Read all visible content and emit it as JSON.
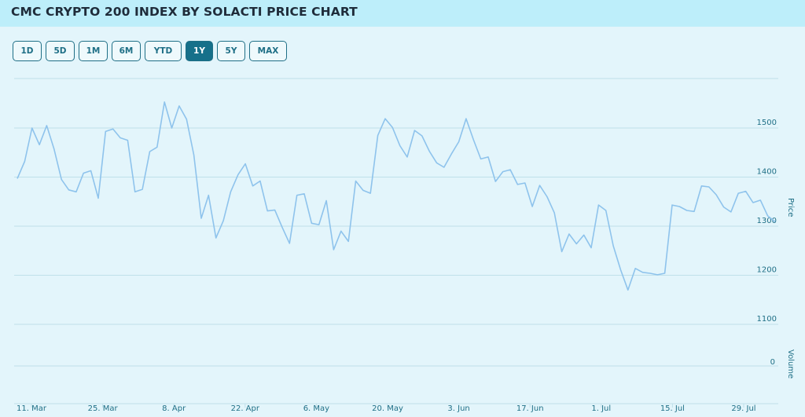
{
  "header": {
    "title": "CMC CRYPTO 200 INDEX BY SOLACTI PRICE CHART"
  },
  "ranges": [
    {
      "label": "1D",
      "active": false
    },
    {
      "label": "5D",
      "active": false
    },
    {
      "label": "1M",
      "active": false
    },
    {
      "label": "6M",
      "active": false
    },
    {
      "label": "YTD",
      "active": false
    },
    {
      "label": "1Y",
      "active": true
    },
    {
      "label": "5Y",
      "active": false
    },
    {
      "label": "MAX",
      "active": false
    }
  ],
  "chart_data": {
    "type": "line",
    "ylabel": "Price",
    "volume_label": "Volume",
    "volume_tick": "0",
    "ylim": [
      1060,
      1620
    ],
    "yticks": [
      1100,
      1200,
      1300,
      1400,
      1500
    ],
    "line_color": "#8ec3ec",
    "grid": true,
    "xticks": [
      "11. Mar",
      "25. Mar",
      "8. Apr",
      "22. Apr",
      "6. May",
      "20. May",
      "3. Jun",
      "17. Jun",
      "1. Jul",
      "15. Jul",
      "29. Jul"
    ],
    "series": [
      {
        "values": [
          1397,
          1432,
          1500,
          1466,
          1505,
          1457,
          1395,
          1374,
          1370,
          1408,
          1413,
          1357,
          1493,
          1498,
          1480,
          1475,
          1370,
          1375,
          1452,
          1461,
          1553,
          1500,
          1545,
          1518,
          1445,
          1316,
          1363,
          1276,
          1311,
          1370,
          1405,
          1427,
          1382,
          1392,
          1331,
          1333,
          1298,
          1265,
          1363,
          1366,
          1306,
          1303,
          1352,
          1252,
          1290,
          1269,
          1392,
          1373,
          1367,
          1485,
          1519,
          1501,
          1464,
          1441,
          1495,
          1484,
          1453,
          1429,
          1420,
          1447,
          1472,
          1519,
          1476,
          1437,
          1441,
          1391,
          1411,
          1415,
          1385,
          1388,
          1340,
          1383,
          1360,
          1327,
          1248,
          1284,
          1264,
          1282,
          1256,
          1343,
          1332,
          1260,
          1211,
          1170,
          1214,
          1206,
          1204,
          1201,
          1204,
          1343,
          1340,
          1332,
          1330,
          1382,
          1380,
          1364,
          1339,
          1329,
          1367,
          1371,
          1348,
          1353,
          1321,
          1309
        ]
      }
    ]
  }
}
